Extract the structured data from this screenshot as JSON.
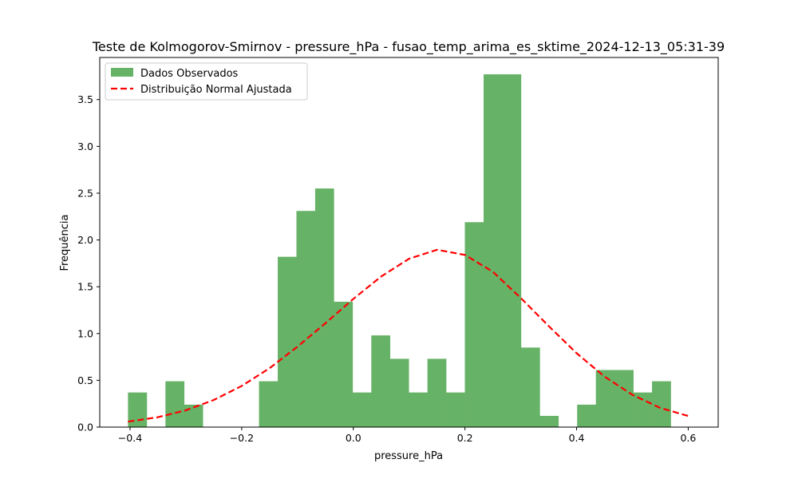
{
  "chart_data": {
    "type": "bar",
    "title": "Teste de Kolmogorov-Smirnov - pressure_hPa - fusao_temp_arima_es_sktime_2024-12-13_05:31-39",
    "xlabel": "pressure_hPa",
    "ylabel": "Frequência",
    "xlim": [
      -0.4543,
      0.6537
    ],
    "ylim": [
      0.0,
      3.95
    ],
    "xticks": [
      -0.4,
      -0.2,
      0.0,
      0.2,
      0.4,
      0.6
    ],
    "xtick_labels": [
      "−0.4",
      "−0.2",
      "0.0",
      "0.2",
      "0.4",
      "0.6"
    ],
    "yticks": [
      0.0,
      0.5,
      1.0,
      1.5,
      2.0,
      2.5,
      3.0,
      3.5
    ],
    "ytick_labels": [
      "0.0",
      "0.5",
      "1.0",
      "1.5",
      "2.0",
      "2.5",
      "3.0",
      "3.5"
    ],
    "grid": false,
    "legend_position": "upper-left",
    "histogram": {
      "name": "Dados Observados",
      "color": "#66b266",
      "bin_edges": [
        -0.4037,
        -0.3701,
        -0.3366,
        -0.3031,
        -0.2696,
        -0.236,
        -0.2025,
        -0.169,
        -0.1354,
        -0.1019,
        -0.0684,
        -0.0349,
        -0.0013,
        0.0322,
        0.0657,
        0.0993,
        0.1328,
        0.1663,
        0.1998,
        0.2334,
        0.2669,
        0.3004,
        0.334,
        0.3675,
        0.401,
        0.4345,
        0.4681,
        0.5016,
        0.5351,
        0.5687,
        0.6022
      ],
      "values": [
        0.37,
        0.0,
        0.49,
        0.24,
        0.0,
        0.0,
        0.0,
        0.49,
        1.82,
        2.31,
        2.55,
        1.34,
        0.37,
        0.98,
        0.73,
        0.37,
        0.73,
        0.37,
        2.19,
        3.77,
        3.77,
        0.85,
        0.12,
        0.0,
        0.24,
        0.61,
        0.61,
        0.37,
        0.49,
        0.0
      ]
    },
    "normal_curve": {
      "name": "Distribuição Normal Ajustada",
      "color": "#ff0000",
      "line_style": "dashed",
      "x": [
        -0.4037,
        -0.35,
        -0.3,
        -0.25,
        -0.2,
        -0.15,
        -0.1,
        -0.05,
        0.0,
        0.05,
        0.1,
        0.15,
        0.2,
        0.25,
        0.3,
        0.35,
        0.4,
        0.45,
        0.5,
        0.55,
        0.6022
      ],
      "y": [
        0.058,
        0.106,
        0.18,
        0.29,
        0.44,
        0.63,
        0.86,
        1.11,
        1.37,
        1.61,
        1.8,
        1.895,
        1.84,
        1.66,
        1.38,
        1.08,
        0.79,
        0.54,
        0.345,
        0.205,
        0.115
      ]
    }
  }
}
